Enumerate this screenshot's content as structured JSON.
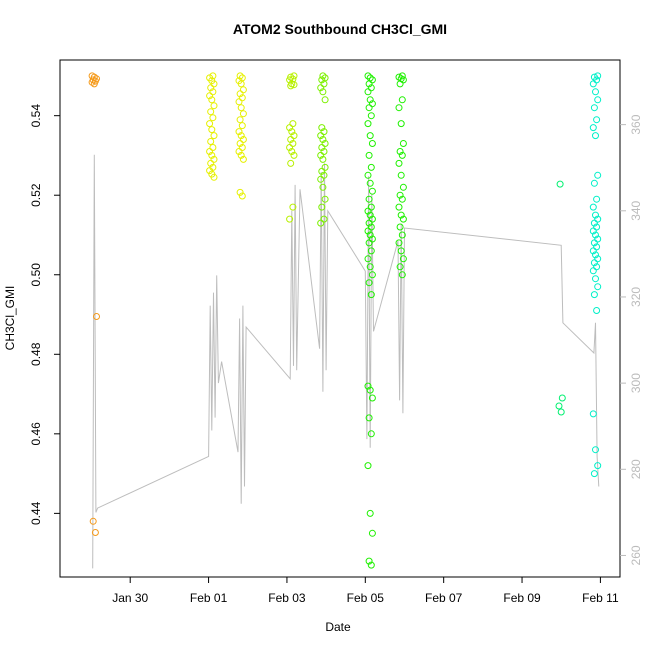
{
  "chart_data": {
    "type": "scatter",
    "title": "ATOM2 Southbound CH3Cl_GMI",
    "xlabel": "Date",
    "ylabel": "CH3Cl_GMI",
    "x_ticks": [
      "Jan 30",
      "Feb 01",
      "Feb 03",
      "Feb 05",
      "Feb 07",
      "Feb 09",
      "Feb 11"
    ],
    "y_ticks": [
      "0.44",
      "0.46",
      "0.48",
      "0.50",
      "0.52",
      "0.54"
    ],
    "y2_ticks": [
      "260",
      "280",
      "300",
      "320",
      "340",
      "360"
    ],
    "ylim": [
      0.424,
      0.554
    ],
    "y2lim": [
      255,
      375
    ],
    "x_range_days": [
      "Jan 28 05:00",
      "Feb 11 12:00"
    ],
    "colors": {
      "orange": "#f59a1a",
      "yellow": "#e6f000",
      "yellow_green": "#b8f000",
      "green_yellow": "#7cf000",
      "green": "#1ef000",
      "spring_green": "#00f070",
      "cyan": "#00f0c8",
      "line": "#bdbdbd",
      "right_axis": "#bbbbbb"
    },
    "series": [
      {
        "date": "Jan 29 02:00",
        "color": "orange",
        "values": [
          0.55,
          0.5497,
          0.5493,
          0.549,
          0.5487,
          0.5484,
          0.548,
          0.4895,
          0.438,
          0.4352
        ]
      },
      {
        "date": "Feb 01 02:00",
        "color": "yellow",
        "values": [
          0.55,
          0.5495,
          0.5488,
          0.548,
          0.547,
          0.546,
          0.545,
          0.544,
          0.5425,
          0.541,
          0.5395,
          0.538,
          0.5365,
          0.535,
          0.5335,
          0.532,
          0.531,
          0.53,
          0.529,
          0.528,
          0.527,
          0.5262,
          0.5253,
          0.5245
        ]
      },
      {
        "date": "Feb 01 20:00",
        "color": "yellow",
        "values": [
          0.55,
          0.5495,
          0.5488,
          0.548,
          0.5465,
          0.5455,
          0.5445,
          0.5435,
          0.542,
          0.5405,
          0.539,
          0.5375,
          0.536,
          0.535,
          0.534,
          0.533,
          0.532,
          0.531,
          0.53,
          0.529,
          0.5207,
          0.5198
        ]
      },
      {
        "date": "Feb 03 03:00",
        "color": "yellow_green",
        "values": [
          0.55,
          0.5497,
          0.5492,
          0.549,
          0.548,
          0.5478,
          0.5475,
          0.538,
          0.537,
          0.536,
          0.535,
          0.534,
          0.533,
          0.532,
          0.531,
          0.53,
          0.528,
          0.517,
          0.514
        ]
      },
      {
        "date": "Feb 03 22:00",
        "color": "green_yellow",
        "values": [
          0.55,
          0.5495,
          0.549,
          0.548,
          0.547,
          0.546,
          0.544,
          0.537,
          0.536,
          0.535,
          0.534,
          0.533,
          0.532,
          0.531,
          0.53,
          0.529,
          0.527,
          0.526,
          0.525,
          0.524,
          0.522,
          0.519,
          0.517,
          0.514,
          0.513
        ]
      },
      {
        "date": "Feb 05 03:00",
        "color": "green",
        "values": [
          0.55,
          0.5495,
          0.549,
          0.548,
          0.547,
          0.546,
          0.544,
          0.543,
          0.542,
          0.54,
          0.538,
          0.535,
          0.533,
          0.53,
          0.527,
          0.525,
          0.523,
          0.521,
          0.519,
          0.517,
          0.516,
          0.515,
          0.514,
          0.513,
          0.512,
          0.511,
          0.51,
          0.509,
          0.508,
          0.506,
          0.504,
          0.502,
          0.5,
          0.498,
          0.495,
          0.472,
          0.471,
          0.469,
          0.464,
          0.46,
          0.452,
          0.44,
          0.435,
          0.428,
          0.427
        ]
      },
      {
        "date": "Feb 05 22:00",
        "color": "green",
        "values": [
          0.55,
          0.5497,
          0.5493,
          0.549,
          0.548,
          0.544,
          0.542,
          0.538,
          0.533,
          0.531,
          0.53,
          0.528,
          0.525,
          0.522,
          0.52,
          0.519,
          0.517,
          0.515,
          0.514,
          0.512,
          0.51,
          0.508,
          0.506,
          0.504,
          0.502,
          0.5
        ]
      },
      {
        "date": "Feb 10 00:00",
        "color": "spring_green",
        "values": [
          0.5228,
          0.469,
          0.467,
          0.4655
        ]
      },
      {
        "date": "Feb 10 21:00",
        "color": "cyan",
        "values": [
          0.55,
          0.5497,
          0.549,
          0.548,
          0.546,
          0.544,
          0.542,
          0.539,
          0.537,
          0.535,
          0.525,
          0.523,
          0.519,
          0.517,
          0.515,
          0.514,
          0.513,
          0.512,
          0.511,
          0.51,
          0.509,
          0.508,
          0.507,
          0.506,
          0.505,
          0.504,
          0.503,
          0.502,
          0.501,
          0.499,
          0.497,
          0.495,
          0.491,
          0.465,
          0.456,
          0.452,
          0.45
        ]
      }
    ],
    "line_series_note": "",
    "line_points": [
      [
        "Jan 29 01:00",
        257
      ],
      [
        "Jan 29 02:00",
        353
      ],
      [
        "Jan 29 03:00",
        270
      ],
      [
        "Jan 29 04:00",
        271
      ],
      [
        "Feb 01 00:00",
        283
      ],
      [
        "Feb 01 01:00",
        318
      ],
      [
        "Feb 01 02:00",
        289
      ],
      [
        "Feb 01 03:00",
        321
      ],
      [
        "Feb 01 04:00",
        292
      ],
      [
        "Feb 01 05:00",
        325
      ],
      [
        "Feb 01 06:00",
        300
      ],
      [
        "Feb 01 08:00",
        305
      ],
      [
        "Feb 01 18:00",
        284
      ],
      [
        "Feb 01 19:00",
        315
      ],
      [
        "Feb 01 20:00",
        272
      ],
      [
        "Feb 01 21:00",
        318
      ],
      [
        "Feb 01 22:00",
        276
      ],
      [
        "Feb 01 23:00",
        313
      ],
      [
        "Feb 03 02:00",
        301
      ],
      [
        "Feb 03 03:00",
        340
      ],
      [
        "Feb 03 04:00",
        304
      ],
      [
        "Feb 03 05:00",
        346
      ],
      [
        "Feb 03 06:00",
        303
      ],
      [
        "Feb 03 08:00",
        345
      ],
      [
        "Feb 03 20:00",
        308
      ],
      [
        "Feb 03 21:00",
        349
      ],
      [
        "Feb 03 22:00",
        298
      ],
      [
        "Feb 03 23:00",
        351
      ],
      [
        "Feb 04 00:00",
        303
      ],
      [
        "Feb 04 01:00",
        340
      ],
      [
        "Feb 05 00:00",
        326
      ],
      [
        "Feb 05 01:00",
        287
      ],
      [
        "Feb 05 02:00",
        348
      ],
      [
        "Feb 05 03:00",
        285
      ],
      [
        "Feb 05 04:00",
        344
      ],
      [
        "Feb 05 05:00",
        312
      ],
      [
        "Feb 05 20:00",
        333
      ],
      [
        "Feb 05 21:00",
        296
      ],
      [
        "Feb 05 22:00",
        337
      ],
      [
        "Feb 05 23:00",
        293
      ],
      [
        "Feb 06 00:00",
        336
      ],
      [
        "Feb 10 00:00",
        332
      ],
      [
        "Feb 10 01:00",
        314
      ],
      [
        "Feb 10 20:00",
        307
      ],
      [
        "Feb 10 21:00",
        314
      ],
      [
        "Feb 10 22:00",
        283
      ],
      [
        "Feb 10 23:00",
        276
      ]
    ]
  }
}
